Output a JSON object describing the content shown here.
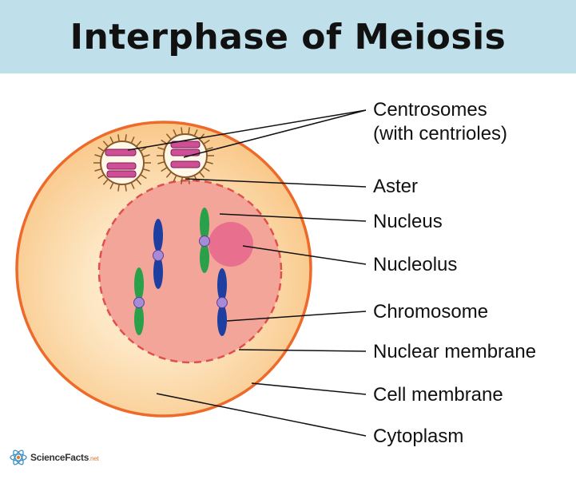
{
  "title": "Interphase of Meiosis",
  "labels": {
    "centrosomes_line1": "Centrosomes",
    "centrosomes_line2": "(with centrioles)",
    "aster": "Aster",
    "nucleus": "Nucleus",
    "nucleolus": "Nucleolus",
    "chromosome": "Chromosome",
    "nuclear_membrane": "Nuclear membrane",
    "cell_membrane": "Cell membrane",
    "cytoplasm": "Cytoplasm"
  },
  "brand": {
    "name": "ScienceFacts",
    "suffix": ".net",
    "icon": "atom-icon"
  },
  "colors": {
    "header_bg": "#bfe0ea",
    "cell_border": "#ee6a2a",
    "cytoplasm": "#fbd29c",
    "nucleus": "#f4a59a",
    "nucleolus": "#e8708e",
    "centriole": "#d04e96",
    "chromosome_blue": "#1f3fa0",
    "chromosome_green": "#2aa04a",
    "centromere": "#a78bd6"
  }
}
